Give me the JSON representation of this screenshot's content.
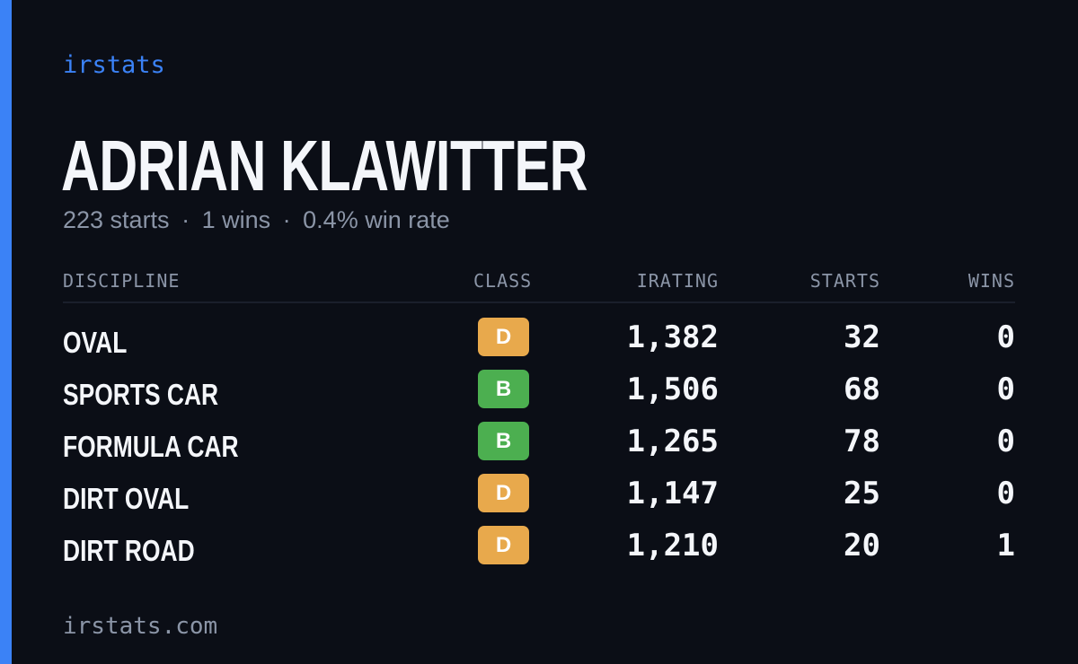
{
  "colors": {
    "background": "#0b0e16",
    "accent": "#3b82f6",
    "text_primary": "#f4f6fa",
    "text_muted": "#8b95a7",
    "class_D": "#e8a94c",
    "class_B": "#4caf50"
  },
  "brand": "irstats",
  "driver": {
    "name": "ADRIAN KLAWITTER",
    "starts": "223 starts",
    "wins": "1 wins",
    "win_rate": "0.4% win rate",
    "separator": "·"
  },
  "table": {
    "headers": {
      "discipline": "DISCIPLINE",
      "class": "CLASS",
      "irating": "IRATING",
      "starts": "STARTS",
      "wins": "WINS"
    },
    "rows": [
      {
        "discipline": "OVAL",
        "class": "D",
        "irating": "1,382",
        "starts": "32",
        "wins": "0"
      },
      {
        "discipline": "SPORTS CAR",
        "class": "B",
        "irating": "1,506",
        "starts": "68",
        "wins": "0"
      },
      {
        "discipline": "FORMULA CAR",
        "class": "B",
        "irating": "1,265",
        "starts": "78",
        "wins": "0"
      },
      {
        "discipline": "DIRT OVAL",
        "class": "D",
        "irating": "1,147",
        "starts": "25",
        "wins": "0"
      },
      {
        "discipline": "DIRT ROAD",
        "class": "D",
        "irating": "1,210",
        "starts": "20",
        "wins": "1"
      }
    ]
  },
  "footer": "irstats.com"
}
